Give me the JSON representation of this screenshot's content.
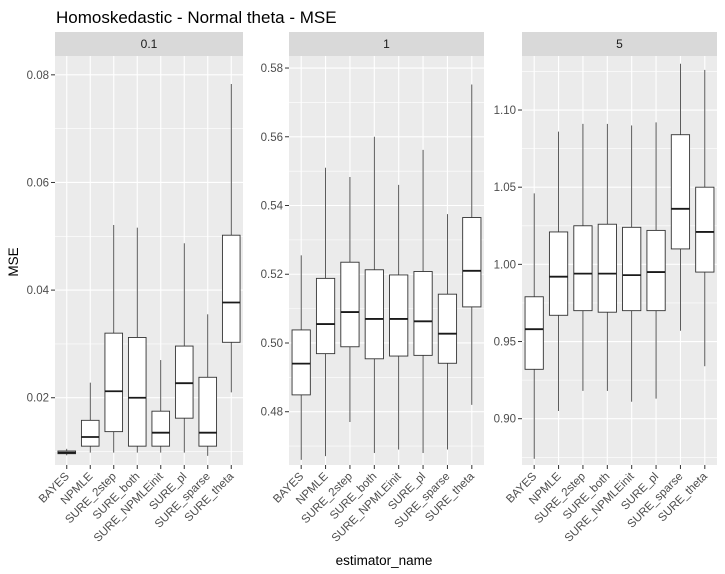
{
  "chart_data": {
    "type": "boxplot",
    "title": "Homoskedastic - Normal theta - MSE",
    "xlabel": "estimator_name",
    "ylabel": "MSE",
    "categories": [
      "BAYES",
      "NPMLE",
      "SURE_2step",
      "SURE_both",
      "SURE_NPMLEinit",
      "SURE_pl",
      "SURE_sparse",
      "SURE_theta"
    ],
    "panels": [
      {
        "label": "0.1",
        "ylim": [
          0.0075,
          0.0835
        ],
        "yticks": [
          0.02,
          0.04,
          0.06,
          0.08
        ],
        "ytick_labels": [
          "0.02",
          "0.04",
          "0.06",
          "0.08"
        ],
        "boxes": [
          {
            "min": 0.0093,
            "q1": 0.0096,
            "median": 0.0098,
            "q3": 0.0101,
            "max": 0.0105
          },
          {
            "min": 0.0098,
            "q1": 0.011,
            "median": 0.0127,
            "q3": 0.0158,
            "max": 0.0228
          },
          {
            "min": 0.0098,
            "q1": 0.0137,
            "median": 0.0212,
            "q3": 0.032,
            "max": 0.0521
          },
          {
            "min": 0.0098,
            "q1": 0.011,
            "median": 0.02,
            "q3": 0.0312,
            "max": 0.0516
          },
          {
            "min": 0.0098,
            "q1": 0.011,
            "median": 0.0135,
            "q3": 0.0175,
            "max": 0.027
          },
          {
            "min": 0.0098,
            "q1": 0.0162,
            "median": 0.0227,
            "q3": 0.0296,
            "max": 0.0487
          },
          {
            "min": 0.0092,
            "q1": 0.011,
            "median": 0.0135,
            "q3": 0.0238,
            "max": 0.0355
          },
          {
            "min": 0.021,
            "q1": 0.0303,
            "median": 0.0377,
            "q3": 0.0502,
            "max": 0.0783
          }
        ]
      },
      {
        "label": "1",
        "ylim": [
          0.4645,
          0.5835
        ],
        "yticks": [
          0.48,
          0.5,
          0.52,
          0.54,
          0.56,
          0.58
        ],
        "ytick_labels": [
          "0.48",
          "0.50",
          "0.52",
          "0.54",
          "0.56",
          "0.58"
        ],
        "boxes": [
          {
            "min": 0.466,
            "q1": 0.4849,
            "median": 0.494,
            "q3": 0.5038,
            "max": 0.5255
          },
          {
            "min": 0.4671,
            "q1": 0.4969,
            "median": 0.5055,
            "q3": 0.5188,
            "max": 0.551
          },
          {
            "min": 0.477,
            "q1": 0.4989,
            "median": 0.509,
            "q3": 0.5235,
            "max": 0.5483
          },
          {
            "min": 0.468,
            "q1": 0.4954,
            "median": 0.507,
            "q3": 0.5213,
            "max": 0.56
          },
          {
            "min": 0.469,
            "q1": 0.4962,
            "median": 0.507,
            "q3": 0.5198,
            "max": 0.546
          },
          {
            "min": 0.468,
            "q1": 0.4964,
            "median": 0.5063,
            "q3": 0.5208,
            "max": 0.5562
          },
          {
            "min": 0.469,
            "q1": 0.4941,
            "median": 0.5027,
            "q3": 0.5142,
            "max": 0.5375
          },
          {
            "min": 0.482,
            "q1": 0.5105,
            "median": 0.521,
            "q3": 0.5365,
            "max": 0.5752
          }
        ]
      },
      {
        "label": "5",
        "ylim": [
          0.87,
          1.135
        ],
        "yticks": [
          0.9,
          0.95,
          1.0,
          1.05,
          1.1
        ],
        "ytick_labels": [
          "0.90",
          "0.95",
          "1.00",
          "1.05",
          "1.10"
        ],
        "boxes": [
          {
            "min": 0.874,
            "q1": 0.932,
            "median": 0.958,
            "q3": 0.979,
            "max": 1.046
          },
          {
            "min": 0.905,
            "q1": 0.967,
            "median": 0.992,
            "q3": 1.021,
            "max": 1.086
          },
          {
            "min": 0.918,
            "q1": 0.97,
            "median": 0.994,
            "q3": 1.025,
            "max": 1.091
          },
          {
            "min": 0.918,
            "q1": 0.969,
            "median": 0.994,
            "q3": 1.026,
            "max": 1.091
          },
          {
            "min": 0.911,
            "q1": 0.97,
            "median": 0.993,
            "q3": 1.024,
            "max": 1.09
          },
          {
            "min": 0.913,
            "q1": 0.97,
            "median": 0.995,
            "q3": 1.022,
            "max": 1.092
          },
          {
            "min": 0.957,
            "q1": 1.01,
            "median": 1.036,
            "q3": 1.084,
            "max": 1.13
          },
          {
            "min": 0.934,
            "q1": 0.995,
            "median": 1.021,
            "q3": 1.05,
            "max": 1.126
          }
        ]
      }
    ],
    "legend": "none",
    "grid": true,
    "colors": {
      "panel_bg": "#ebebeb",
      "strip_bg": "#d9d9d9",
      "grid_major": "#ffffff",
      "box_fill": "#ffffff",
      "box_stroke": "#333333",
      "median": "#1a1a1a"
    }
  }
}
